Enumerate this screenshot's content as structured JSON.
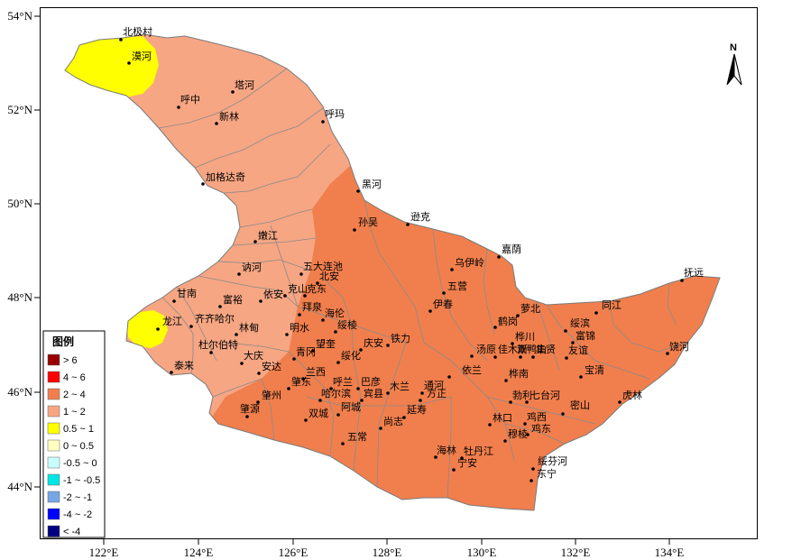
{
  "map": {
    "x_axis_ticks": [
      "122°E",
      "124°E",
      "126°E",
      "128°E",
      "130°E",
      "132°E",
      "134°E"
    ],
    "y_axis_ticks": [
      "54°N",
      "52°N",
      "50°N",
      "48°N",
      "46°N",
      "44°N"
    ],
    "north_arrow_label": "N",
    "colors": {
      "gt6": "#990000",
      "4_6": "#ff0000",
      "2_4": "#f07f4d",
      "1_2": "#f6a683",
      "0.5_1": "#ffff00",
      "0_0.5": "#ffffc0",
      "neg0.5_0": "#c8ffff",
      "neg1_neg0.5": "#00e5e5",
      "neg2_neg1": "#76a6e6",
      "neg4_neg2": "#0000ff",
      "lt_neg4": "#000080"
    },
    "legend": {
      "title": "图例",
      "items": [
        "> 6",
        "4 ~ 6",
        "2 ~ 4",
        "1 ~ 2",
        "0.5 ~ 1",
        "0 ~ 0.5",
        "-0.5 ~ 0",
        "-1 ~ -0.5",
        "-2 ~ -1",
        "-4 ~ -2",
        "< -4"
      ]
    },
    "cities": [
      "北极村",
      "漠河",
      "塔河",
      "呼中",
      "新林",
      "呼玛",
      "加格达奇",
      "黑河",
      "孙吴",
      "逊克",
      "嘉荫",
      "嫩江",
      "讷河",
      "五大连池",
      "北安",
      "克山",
      "克东",
      "甘南",
      "富裕",
      "依安",
      "拜泉",
      "齐齐哈尔",
      "龙江",
      "明水",
      "林甸",
      "杜尔伯特",
      "泰来",
      "大庆",
      "安达",
      "青冈",
      "望奎",
      "海伦",
      "绥棱",
      "庆安",
      "铁力",
      "绥化",
      "兰西",
      "呼兰",
      "巴彦",
      "肇东",
      "哈尔滨",
      "宾县",
      "木兰",
      "通河",
      "方正",
      "依兰",
      "肇州",
      "肇源",
      "双城",
      "阿城",
      "尚志",
      "五常",
      "延寿",
      "乌伊岭",
      "五营",
      "伊春",
      "萝北",
      "鹤岗",
      "汤原",
      "佳木斯",
      "桦川",
      "双鸭山",
      "集贤",
      "绥滨",
      "富锦",
      "同江",
      "友谊",
      "宝清",
      "饶河",
      "抚远",
      "桦南",
      "勃利",
      "七台河",
      "鸡西",
      "鸡东",
      "密山",
      "虎林",
      "林口",
      "穆棱",
      "海林",
      "牡丹江",
      "宁安",
      "东宁",
      "绥芬河"
    ]
  }
}
